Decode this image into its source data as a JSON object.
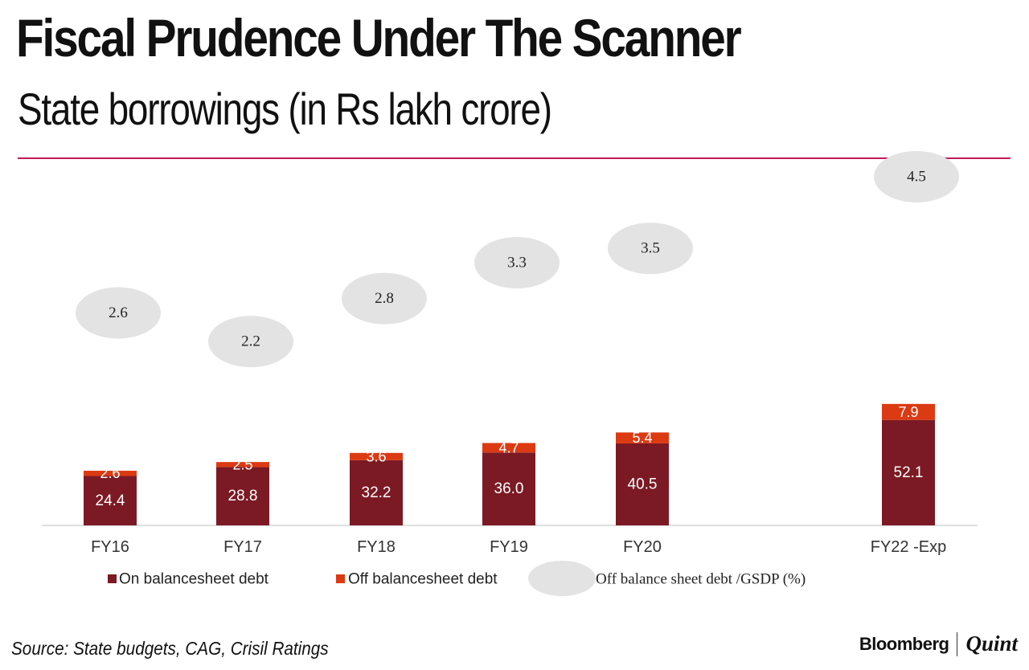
{
  "header": {
    "title": "Fiscal Prudence Under The Scanner",
    "subtitle": "State borrowings (in Rs lakh crore)"
  },
  "footer": {
    "source": "Source: State budgets, CAG, Crisil Ratings",
    "brand_primary": "Bloomberg",
    "brand_secondary": "Quint"
  },
  "colors": {
    "on_balance": "#7b1a24",
    "off_balance": "#dc3a12",
    "ratio_bubble": "#e3e3e3",
    "title_rule": "#c2185b"
  },
  "chart_data": {
    "type": "bar",
    "stacked": true,
    "title": "Fiscal Prudence Under The Scanner",
    "subtitle": "State borrowings (in Rs lakh crore)",
    "xlabel": "",
    "ylabel": "",
    "categories": [
      "FY16",
      "FY17",
      "FY18",
      "FY19",
      "FY20",
      "FY22 -Exp"
    ],
    "series": [
      {
        "name": "On balancesheet debt",
        "values": [
          24.4,
          28.8,
          32.2,
          36.0,
          40.5,
          52.1
        ],
        "labels": [
          "24.4",
          "28.8",
          "32.2",
          "36.0",
          "40.5",
          "52.1"
        ]
      },
      {
        "name": "Off balancesheet debt",
        "values": [
          2.6,
          2.5,
          3.6,
          4.7,
          5.4,
          7.9
        ],
        "labels": [
          "2.6",
          "2.5",
          "3.6",
          "4.7",
          "5.4",
          "7.9"
        ]
      }
    ],
    "ratio_series": {
      "name": "Off balance sheet debt /GSDP (%)",
      "values": [
        2.6,
        2.2,
        2.8,
        3.3,
        3.5,
        4.5
      ],
      "labels": [
        "2.6",
        "2.2",
        "2.8",
        "3.3",
        "3.5",
        "4.5"
      ],
      "ylim": [
        2.0,
        4.6
      ]
    },
    "ylim": [
      0,
      65
    ],
    "grid": false,
    "legend_position": "bottom"
  }
}
